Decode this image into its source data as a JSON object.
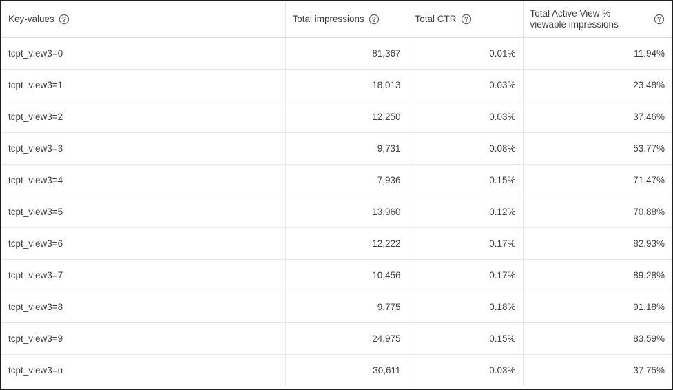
{
  "table": {
    "columns": [
      {
        "label": "Key-values",
        "help_icon": "help-circle-icon"
      },
      {
        "label": "Total impressions",
        "help_icon": "help-circle-icon"
      },
      {
        "label": "Total CTR",
        "help_icon": "help-circle-icon"
      },
      {
        "label": "Total Active View % viewable impressions",
        "help_icon": "help-circle-icon"
      }
    ],
    "rows": [
      {
        "key": "tcpt_view3=0",
        "impressions": "81,367",
        "ctr": "0.01%",
        "viewable": "11.94%"
      },
      {
        "key": "tcpt_view3=1",
        "impressions": "18,013",
        "ctr": "0.03%",
        "viewable": "23.48%"
      },
      {
        "key": "tcpt_view3=2",
        "impressions": "12,250",
        "ctr": "0.03%",
        "viewable": "37.46%"
      },
      {
        "key": "tcpt_view3=3",
        "impressions": "9,731",
        "ctr": "0.08%",
        "viewable": "53.77%"
      },
      {
        "key": "tcpt_view3=4",
        "impressions": "7,936",
        "ctr": "0.15%",
        "viewable": "71.47%"
      },
      {
        "key": "tcpt_view3=5",
        "impressions": "13,960",
        "ctr": "0.12%",
        "viewable": "70.88%"
      },
      {
        "key": "tcpt_view3=6",
        "impressions": "12,222",
        "ctr": "0.17%",
        "viewable": "82.93%"
      },
      {
        "key": "tcpt_view3=7",
        "impressions": "10,456",
        "ctr": "0.17%",
        "viewable": "89.28%"
      },
      {
        "key": "tcpt_view3=8",
        "impressions": "9,775",
        "ctr": "0.18%",
        "viewable": "91.18%"
      },
      {
        "key": "tcpt_view3=9",
        "impressions": "24,975",
        "ctr": "0.15%",
        "viewable": "83.59%"
      },
      {
        "key": "tcpt_view3=u",
        "impressions": "30,611",
        "ctr": "0.03%",
        "viewable": "37.75%"
      }
    ]
  },
  "colors": {
    "text": "#3c4043",
    "grid": "#e6e6e6",
    "icon": "#5f6368",
    "frame": "#1f1f1f"
  }
}
